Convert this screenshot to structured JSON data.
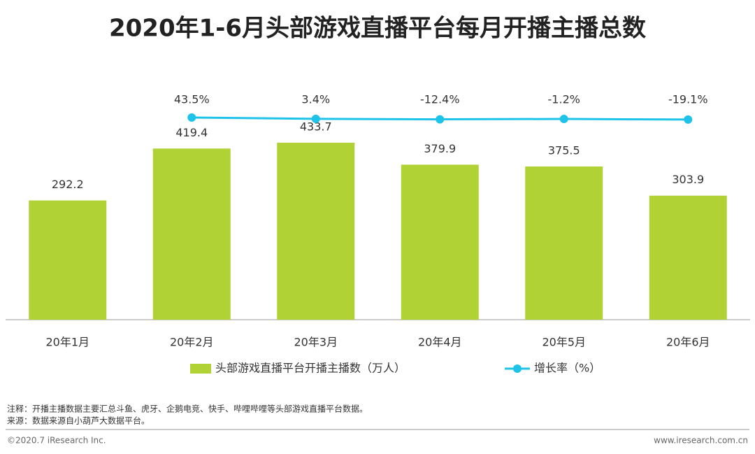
{
  "chart_data": {
    "type": "bar",
    "title": "2020年1-6月头部游戏直播平台每月开播主播总数",
    "categories": [
      "20年1月",
      "20年2月",
      "20年3月",
      "20年4月",
      "20年5月",
      "20年6月"
    ],
    "series": [
      {
        "name": "头部游戏直播平台开播主播数（万人）",
        "type": "bar",
        "color": "#b0d235",
        "values": [
          292.2,
          419.4,
          433.7,
          379.9,
          375.5,
          303.9
        ]
      },
      {
        "name": "增长率（%）",
        "type": "line",
        "axis": "y2",
        "color": "#1fc3ea",
        "values": [
          null,
          43.5,
          3.4,
          -12.4,
          -1.2,
          -19.1
        ],
        "value_labels": [
          null,
          "43.5%",
          "3.4%",
          "-12.4%",
          "-1.2%",
          "-19.1%"
        ]
      }
    ],
    "ylim": [
      0,
      600
    ],
    "y2lim": [
      -6000,
      1500
    ],
    "legend": "bottom",
    "notes": [
      "注释：开播主播数据主要汇总斗鱼、虎牙、企鹅电竞、快手、哔哩哔哩等头部游戏直播平台数据。",
      "来源：数据来源自小葫芦大数据平台。"
    ],
    "copyright": "©2020.7 iResearch Inc.",
    "website": "www.iresearch.com.cn"
  }
}
